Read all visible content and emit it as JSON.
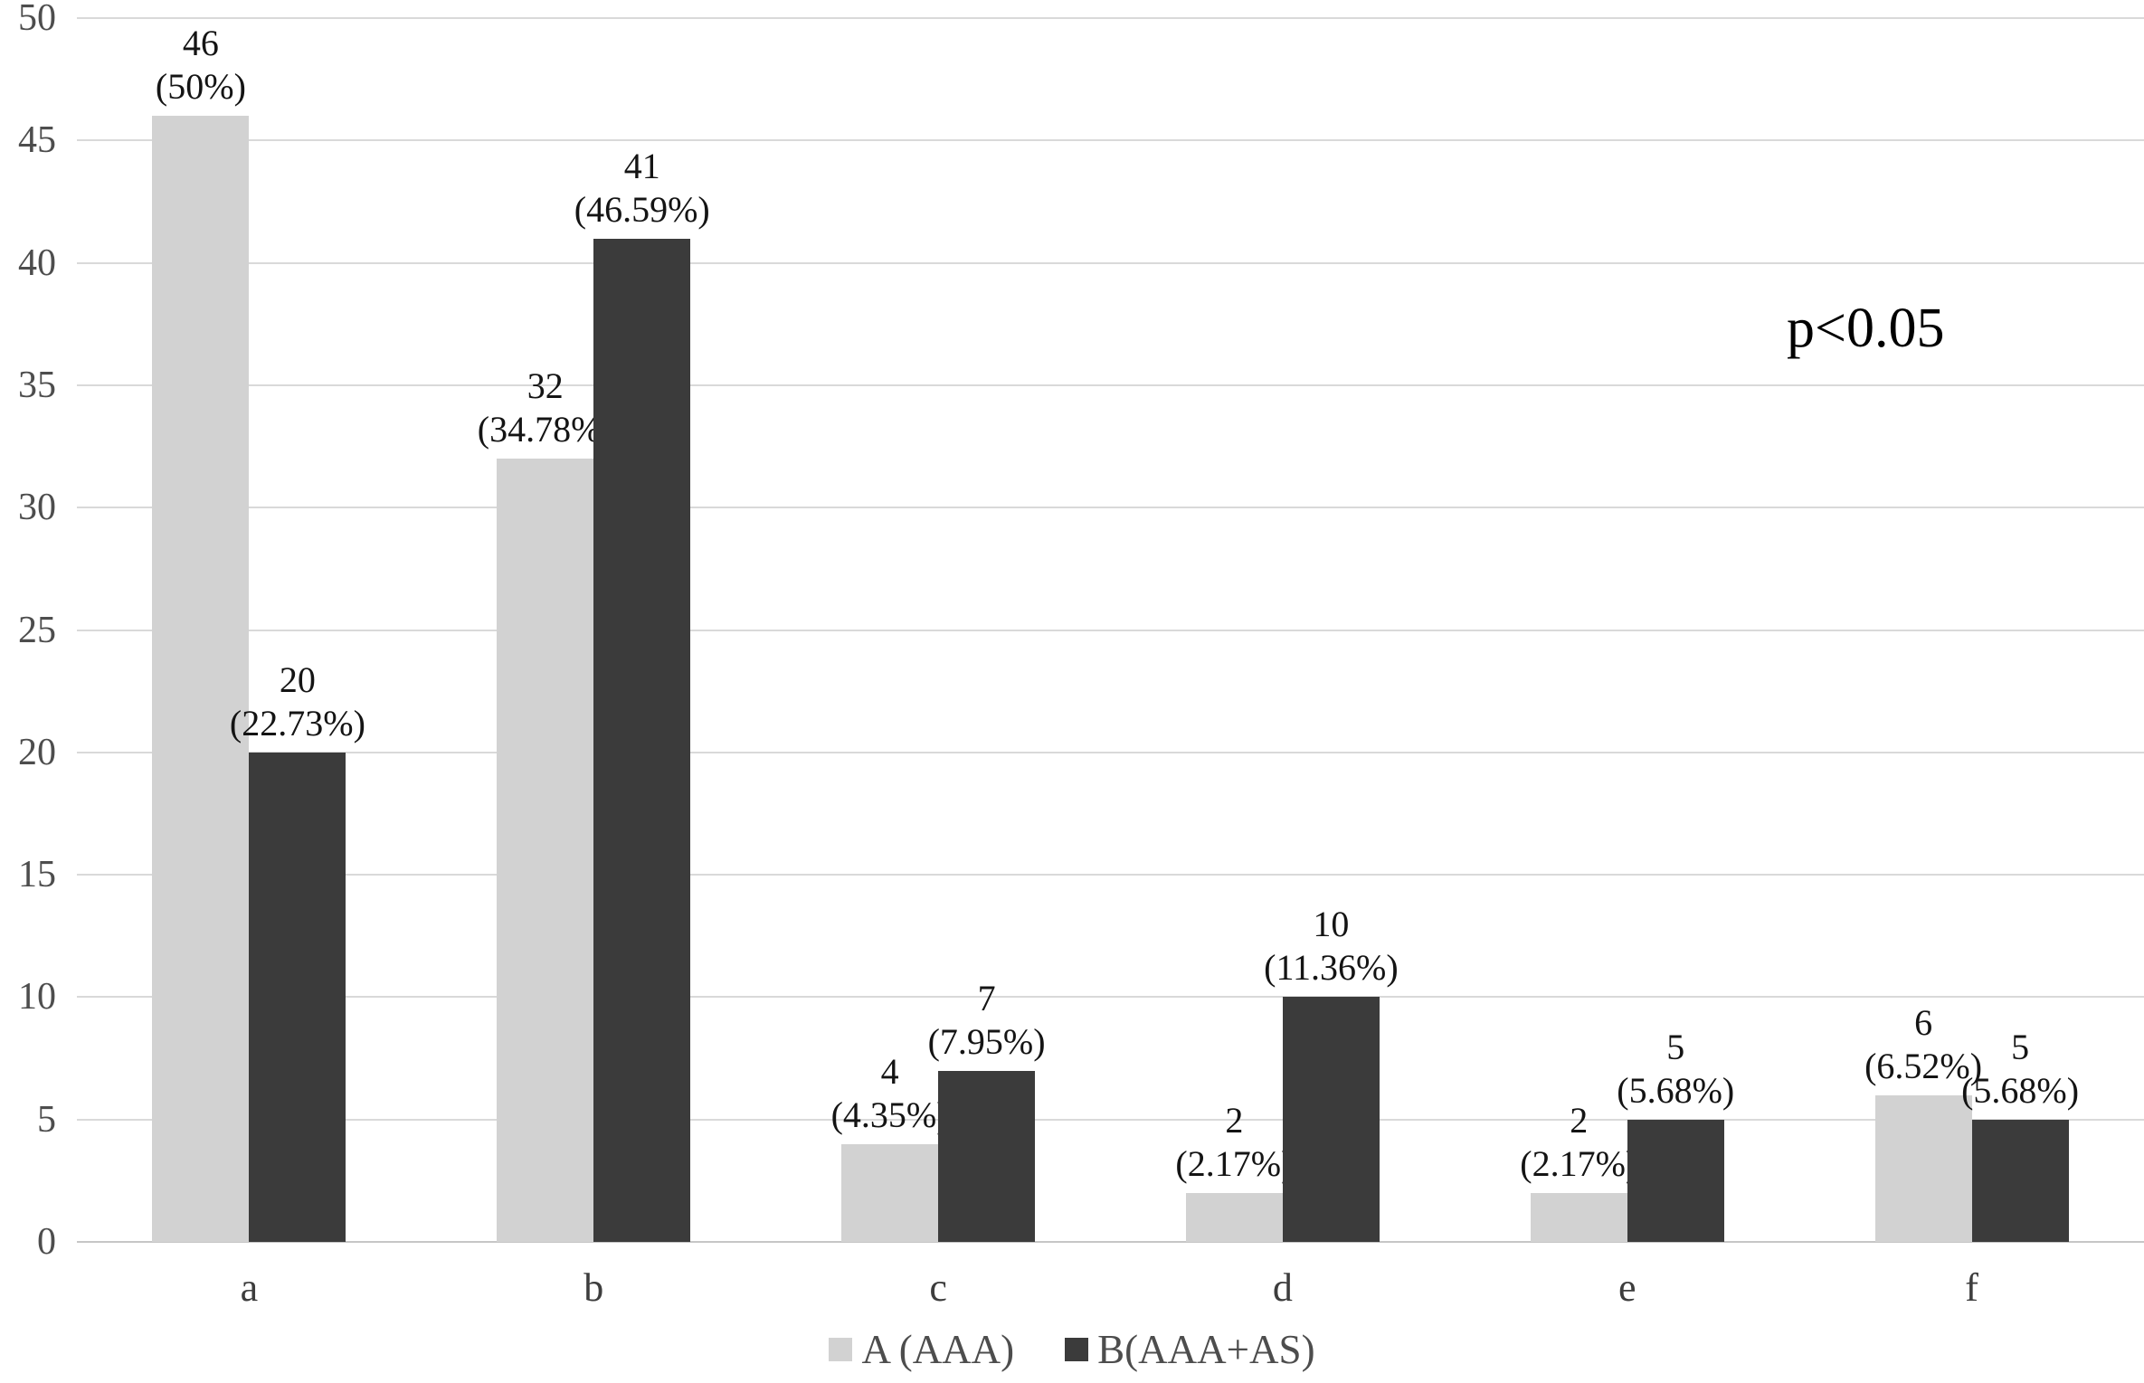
{
  "chart_data": {
    "type": "bar",
    "title": "",
    "xlabel": "",
    "ylabel": "",
    "categories": [
      "a",
      "b",
      "c",
      "d",
      "e",
      "f"
    ],
    "series": [
      {
        "name": "A (AAA)",
        "color": "#d2d2d2",
        "values": [
          46,
          32,
          4,
          2,
          2,
          6
        ],
        "labels": [
          [
            "46",
            "(50%)"
          ],
          [
            "32",
            "(34.78%)"
          ],
          [
            "4",
            "(4.35%)"
          ],
          [
            "2",
            "(2.17%)"
          ],
          [
            "2",
            "(2.17%)"
          ],
          [
            "6",
            "(6.52%)"
          ]
        ]
      },
      {
        "name": "B(AAA+AS)",
        "color": "#3b3b3b",
        "values": [
          20,
          41,
          7,
          10,
          5,
          5
        ],
        "labels": [
          [
            "20",
            "(22.73%)"
          ],
          [
            "41",
            "(46.59%)"
          ],
          [
            "7",
            "(7.95%)"
          ],
          [
            "10",
            "(11.36%)"
          ],
          [
            "5",
            "(5.68%)"
          ],
          [
            "5",
            "(5.68%)"
          ]
        ]
      }
    ],
    "ylim": [
      0,
      50
    ],
    "yticks": [
      0,
      5,
      10,
      15,
      20,
      25,
      30,
      35,
      40,
      45,
      50
    ],
    "grid": true,
    "gridline_color": "#d9d9d9",
    "annotation": "p<0.05",
    "legend_position": "bottom"
  }
}
